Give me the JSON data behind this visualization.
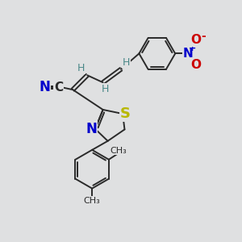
{
  "background_color": "#dfe0e1",
  "bond_color": "#2a2a2a",
  "atoms": {
    "S": {
      "color": "#b8b800",
      "fontsize": 12
    },
    "N_thiazole": {
      "color": "#0000cc",
      "fontsize": 12
    },
    "N_nitrile": {
      "color": "#0000cc",
      "fontsize": 12
    },
    "C_nitrile": {
      "color": "#2a2a2a",
      "fontsize": 11
    },
    "N_nitro": {
      "color": "#0000cc",
      "fontsize": 11
    },
    "O_nitro": {
      "color": "#cc0000",
      "fontsize": 11
    },
    "H_label": {
      "color": "#4a8888",
      "fontsize": 9
    },
    "me_label": {
      "color": "#2a2a2a",
      "fontsize": 8
    }
  },
  "layout": {
    "xlim": [
      0,
      10
    ],
    "ylim": [
      0,
      10
    ],
    "figsize": [
      3.0,
      3.0
    ],
    "dpi": 100
  }
}
